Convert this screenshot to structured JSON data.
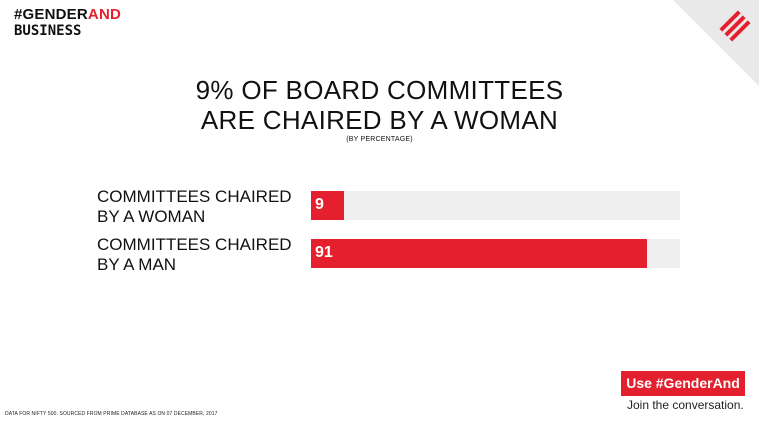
{
  "brand": {
    "hashtag_prefix": "#GENDER",
    "hashtag_highlight": "AND",
    "line2": "BUSINESS"
  },
  "logo_icon": "express-stripes-logo",
  "colors": {
    "accent": "#e5202e",
    "track": "#efefef"
  },
  "chart_data": {
    "type": "bar",
    "orientation": "horizontal",
    "title_lines": [
      "9% OF BOARD COMMITTEES",
      "ARE CHAIRED BY A WOMAN"
    ],
    "subtitle": "(BY PERCENTAGE)",
    "categories": [
      [
        "COMMITTEES CHAIRED",
        "BY A WOMAN"
      ],
      [
        "COMMITTEES CHAIRED",
        "BY A MAN"
      ]
    ],
    "values": [
      9,
      91
    ],
    "xlim": [
      0,
      100
    ],
    "grid": false,
    "legend": false
  },
  "footnote": "DATA FOR NIFTY 500. SOURCED FROM PRIME DATABASE AS ON 07 DECEMBER, 2017",
  "cta": {
    "button_label": "Use #GenderAnd",
    "subtext": "Join the conversation."
  }
}
